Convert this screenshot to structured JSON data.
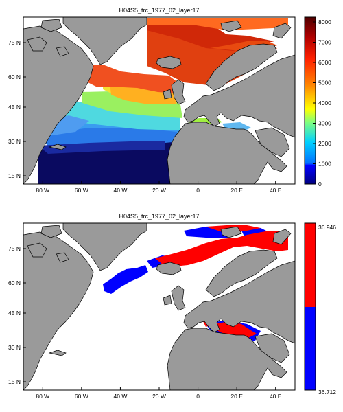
{
  "figure": {
    "panels": [
      {
        "title": "H04S5_trc_1977_02_layer17",
        "colorbar_type": "continuous",
        "colorbar_ticks": [
          "8000",
          "7000",
          "6000",
          "5000",
          "4000",
          "3000",
          "2000",
          "1000",
          "0"
        ],
        "y_ticks": [
          "75 N",
          "60 N",
          "45 N",
          "30 N",
          "15 N"
        ],
        "x_ticks": [
          "80 W",
          "60 W",
          "40 W",
          "20 W",
          "0",
          "20 E",
          "40 E"
        ]
      },
      {
        "title": "H04S5_trc_1977_02_layer17",
        "colorbar_type": "binary",
        "colorbar_ticks": [
          "36.946",
          "36.712"
        ],
        "y_ticks": [
          "75 N",
          "60 N",
          "45 N",
          "30 N",
          "15 N"
        ],
        "x_ticks": [
          "80 W",
          "60 W",
          "40 W",
          "20 W",
          "0",
          "20 E",
          "40 E"
        ]
      }
    ]
  },
  "colors": {
    "land": "#9a9a9a",
    "ocean_nodata": "#ffffff",
    "binary_high": "#ff0000",
    "binary_low": "#0000ff"
  },
  "chart_data": [
    {
      "type": "heatmap",
      "title": "H04S5_trc_1977_02_layer17",
      "x_range": [
        -90,
        50
      ],
      "y_range": [
        10,
        85
      ],
      "colorbar_range": [
        0,
        8000
      ],
      "grid": false
    },
    {
      "type": "heatmap",
      "title": "H04S5_trc_1977_02_layer17",
      "x_range": [
        -90,
        50
      ],
      "y_range": [
        10,
        85
      ],
      "colorbar_range": [
        36.712,
        36.946
      ],
      "grid": false
    }
  ]
}
